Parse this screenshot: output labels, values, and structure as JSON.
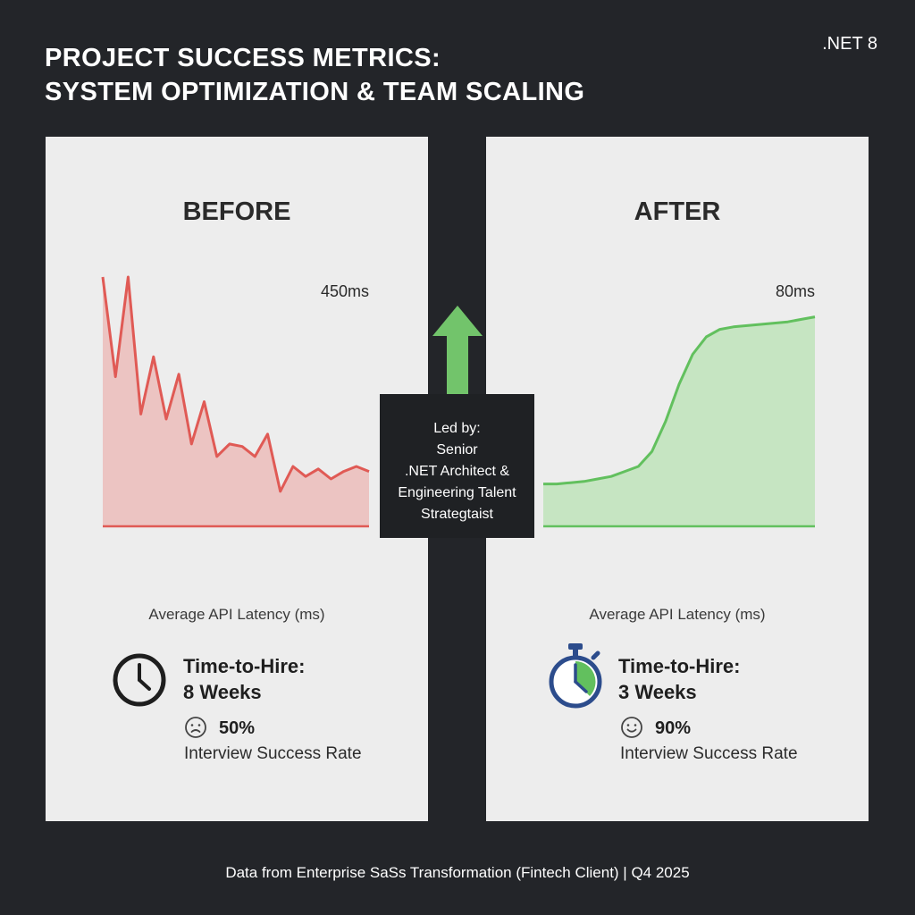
{
  "header": {
    "title_line1": "PROJECT SUCCESS METRICS:",
    "title_line2": "SYSTEM OPTIMIZATION & TEAM SCALING",
    "badge": ".NET 8"
  },
  "center_box": {
    "lines": [
      "Led by:",
      "Senior",
      ".NET Architect &",
      "Engineering Talent",
      "Strategtaist"
    ]
  },
  "footer": "Data from Enterprise SaSs Transformation (Fintech Client) | Q4 2025",
  "colors": {
    "background": "#232529",
    "panel": "#ededed",
    "before_line": "#e05a55",
    "before_fill": "#ecc4c2",
    "after_line": "#62c05e",
    "after_fill": "#c6e5c2",
    "arrow": "#72c46b",
    "stopwatch": "#2c4c8c"
  },
  "panels": {
    "before": {
      "heading": "BEFORE",
      "caption": "Average API Latency (ms)",
      "metric_label": "Time-to-Hire:",
      "metric_value": "8 Weeks",
      "rate": "50%",
      "rate_label": "Interview Success Rate",
      "icon": "clock-icon",
      "face": "sad-face-icon"
    },
    "after": {
      "heading": "AFTER",
      "caption": "Average API Latency (ms)",
      "metric_label": "Time-to-Hire:",
      "metric_value": "3 Weeks",
      "rate": "90%",
      "rate_label": "Interview Success Rate",
      "icon": "stopwatch-icon",
      "face": "smile-face-icon"
    }
  },
  "chart_data": [
    {
      "type": "area",
      "name": "before",
      "annotation": "450ms",
      "xlabel": "Average API Latency (ms)",
      "ylim": [
        0,
        100
      ],
      "x": [
        0,
        1,
        2,
        3,
        4,
        5,
        6,
        7,
        8,
        9,
        10,
        11,
        12,
        13,
        14,
        15,
        16,
        17,
        18,
        19,
        20,
        21
      ],
      "values": [
        100,
        60,
        100,
        45,
        68,
        43,
        61,
        33,
        50,
        28,
        33,
        32,
        28,
        37,
        14,
        24,
        20,
        23,
        19,
        22,
        24,
        22
      ]
    },
    {
      "type": "area",
      "name": "after",
      "annotation": "80ms",
      "xlabel": "Average API Latency (ms)",
      "ylim": [
        0,
        100
      ],
      "x": [
        0,
        1,
        2,
        3,
        4,
        5,
        6,
        7,
        8,
        9,
        10,
        11,
        12,
        13,
        14,
        15,
        16,
        17,
        18,
        19,
        20
      ],
      "values": [
        17,
        17,
        17.5,
        18,
        19,
        20,
        22,
        24,
        30,
        42,
        57,
        69,
        76,
        79,
        80,
        80.5,
        81,
        81.5,
        82,
        83,
        84
      ]
    }
  ]
}
